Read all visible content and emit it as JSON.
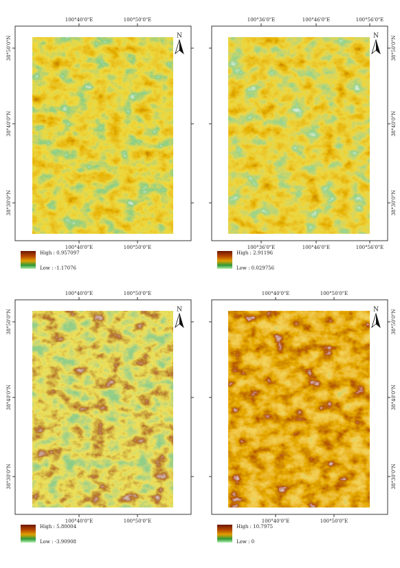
{
  "panels": [
    {
      "top_labels": [
        "100°40'0\"E",
        "100°50'0\"E"
      ],
      "side_labels": [
        "38°50'0\"N",
        "38°40'0\"N",
        "38°30'0\"N"
      ],
      "bottom_labels": [
        "100°40'0\"E",
        "100°50'0\"E"
      ],
      "north": "N",
      "legend": {
        "high": "High : 0.957097",
        "low": "Low : -1.17076"
      }
    },
    {
      "top_labels": [
        "100°36'0\"E",
        "100°46'0\"E",
        "100°56'0\"E"
      ],
      "side_labels": [
        "38°50'0\"N",
        "38°40'0\"N",
        "38°30'0\"N"
      ],
      "bottom_labels": [
        "100°36'0\"E",
        "100°46'0\"E",
        "100°56'0\"E"
      ],
      "north": "N",
      "legend": {
        "high": "High : 2.91196",
        "low": "Low : 0.029756"
      }
    },
    {
      "top_labels": [
        "100°40'0\"E",
        "100°50'0\"E"
      ],
      "side_labels": [
        "38°50'0\"N",
        "38°40'0\"N",
        "38°30'0\"N"
      ],
      "bottom_labels": [
        "100°40'0\"E",
        "100°50'0\"E"
      ],
      "north": "N",
      "legend": {
        "high": "High : 5.80004",
        "low": "Low : -3.90908"
      }
    },
    {
      "top_labels": [
        "100°40'0\"E",
        "100°50'0\"E"
      ],
      "side_labels": [
        "38°50'0\"N",
        "38°40'0\"N",
        "38°30'0\"N"
      ],
      "bottom_labels": [
        "100°40'0\"E",
        "100°50'0\"E"
      ],
      "north": "N",
      "legend": {
        "high": "High : 10.7975",
        "low": "Low : 0"
      }
    }
  ]
}
